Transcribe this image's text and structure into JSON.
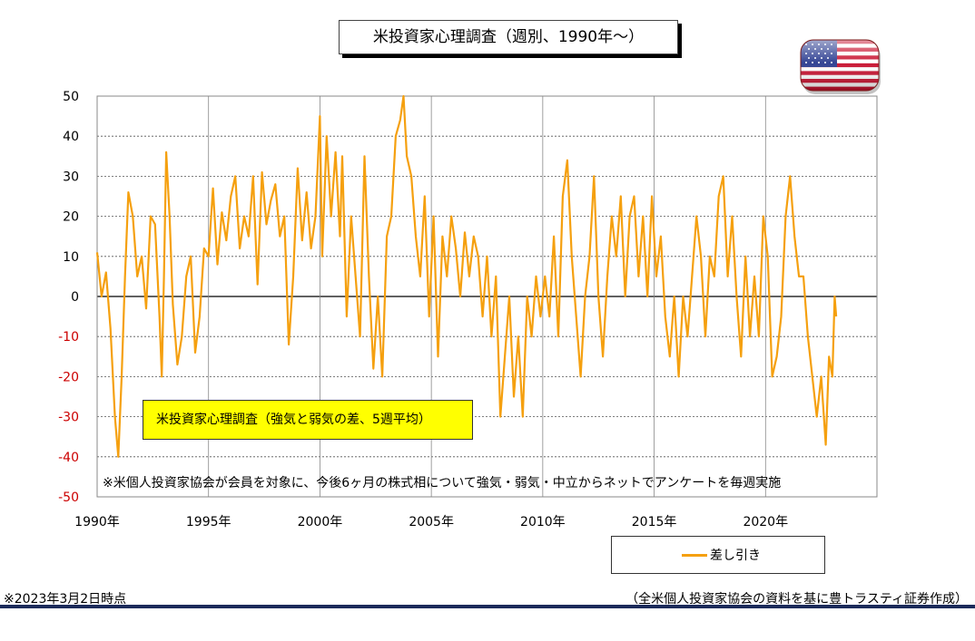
{
  "chart_data": {
    "type": "line",
    "title": "米投資家心理調査（週別、1990年～）",
    "ylim": [
      -50,
      50
    ],
    "yticks": [
      "50",
      "40",
      "30",
      "20",
      "10",
      "0",
      "-10",
      "-20",
      "-30",
      "-40",
      "-50"
    ],
    "xlim": [
      1990,
      2025
    ],
    "xticks": [
      {
        "label": "1990年",
        "value": 1990
      },
      {
        "label": "1995年",
        "value": 1995
      },
      {
        "label": "2000年",
        "value": 2000
      },
      {
        "label": "2005年",
        "value": 2005
      },
      {
        "label": "2010年",
        "value": 2010
      },
      {
        "label": "2015年",
        "value": 2015
      },
      {
        "label": "2020年",
        "value": 2020
      }
    ],
    "grid": true,
    "series": [
      {
        "name": "差し引き",
        "color": "#f5a00f",
        "points": [
          [
            1990.0,
            11
          ],
          [
            1990.2,
            0
          ],
          [
            1990.4,
            6
          ],
          [
            1990.6,
            -8
          ],
          [
            1990.8,
            -30
          ],
          [
            1990.95,
            -40
          ],
          [
            1991.1,
            -20
          ],
          [
            1991.25,
            5
          ],
          [
            1991.4,
            26
          ],
          [
            1991.6,
            20
          ],
          [
            1991.8,
            5
          ],
          [
            1992.0,
            10
          ],
          [
            1992.2,
            -3
          ],
          [
            1992.4,
            20
          ],
          [
            1992.6,
            18
          ],
          [
            1992.8,
            -5
          ],
          [
            1992.9,
            -20
          ],
          [
            1993.0,
            5
          ],
          [
            1993.1,
            36
          ],
          [
            1993.25,
            20
          ],
          [
            1993.4,
            -2
          ],
          [
            1993.6,
            -17
          ],
          [
            1993.8,
            -10
          ],
          [
            1994.0,
            5
          ],
          [
            1994.2,
            10
          ],
          [
            1994.4,
            -14
          ],
          [
            1994.6,
            -5
          ],
          [
            1994.8,
            12
          ],
          [
            1995.0,
            10
          ],
          [
            1995.2,
            27
          ],
          [
            1995.4,
            8
          ],
          [
            1995.6,
            21
          ],
          [
            1995.8,
            14
          ],
          [
            1996.0,
            25
          ],
          [
            1996.2,
            30
          ],
          [
            1996.4,
            12
          ],
          [
            1996.6,
            20
          ],
          [
            1996.8,
            15
          ],
          [
            1997.0,
            30
          ],
          [
            1997.2,
            3
          ],
          [
            1997.4,
            31
          ],
          [
            1997.6,
            18
          ],
          [
            1997.8,
            24
          ],
          [
            1998.0,
            28
          ],
          [
            1998.2,
            15
          ],
          [
            1998.4,
            20
          ],
          [
            1998.6,
            -12
          ],
          [
            1998.8,
            5
          ],
          [
            1999.0,
            32
          ],
          [
            1999.2,
            14
          ],
          [
            1999.4,
            26
          ],
          [
            1999.6,
            12
          ],
          [
            1999.8,
            20
          ],
          [
            2000.0,
            45
          ],
          [
            2000.1,
            10
          ],
          [
            2000.3,
            40
          ],
          [
            2000.5,
            20
          ],
          [
            2000.7,
            36
          ],
          [
            2000.9,
            15
          ],
          [
            2001.0,
            35
          ],
          [
            2001.2,
            -5
          ],
          [
            2001.4,
            20
          ],
          [
            2001.6,
            5
          ],
          [
            2001.8,
            -10
          ],
          [
            2002.0,
            35
          ],
          [
            2002.2,
            5
          ],
          [
            2002.4,
            -18
          ],
          [
            2002.6,
            0
          ],
          [
            2002.8,
            -20
          ],
          [
            2003.0,
            15
          ],
          [
            2003.2,
            20
          ],
          [
            2003.4,
            40
          ],
          [
            2003.6,
            44
          ],
          [
            2003.75,
            50
          ],
          [
            2003.9,
            35
          ],
          [
            2004.1,
            30
          ],
          [
            2004.3,
            15
          ],
          [
            2004.5,
            5
          ],
          [
            2004.7,
            25
          ],
          [
            2004.9,
            -5
          ],
          [
            2005.1,
            20
          ],
          [
            2005.3,
            -15
          ],
          [
            2005.5,
            15
          ],
          [
            2005.7,
            5
          ],
          [
            2005.9,
            20
          ],
          [
            2006.1,
            12
          ],
          [
            2006.3,
            0
          ],
          [
            2006.5,
            16
          ],
          [
            2006.7,
            5
          ],
          [
            2006.9,
            15
          ],
          [
            2007.1,
            10
          ],
          [
            2007.3,
            -5
          ],
          [
            2007.5,
            10
          ],
          [
            2007.7,
            -10
          ],
          [
            2007.9,
            5
          ],
          [
            2008.1,
            -30
          ],
          [
            2008.3,
            -15
          ],
          [
            2008.5,
            0
          ],
          [
            2008.7,
            -25
          ],
          [
            2008.9,
            -10
          ],
          [
            2009.1,
            -30
          ],
          [
            2009.3,
            0
          ],
          [
            2009.5,
            -10
          ],
          [
            2009.7,
            5
          ],
          [
            2009.9,
            -5
          ],
          [
            2010.1,
            5
          ],
          [
            2010.3,
            -5
          ],
          [
            2010.5,
            15
          ],
          [
            2010.7,
            -10
          ],
          [
            2010.9,
            25
          ],
          [
            2011.1,
            34
          ],
          [
            2011.3,
            10
          ],
          [
            2011.5,
            -5
          ],
          [
            2011.7,
            -20
          ],
          [
            2011.9,
            0
          ],
          [
            2012.1,
            10
          ],
          [
            2012.3,
            30
          ],
          [
            2012.5,
            0
          ],
          [
            2012.7,
            -15
          ],
          [
            2012.9,
            5
          ],
          [
            2013.1,
            20
          ],
          [
            2013.3,
            10
          ],
          [
            2013.5,
            25
          ],
          [
            2013.7,
            0
          ],
          [
            2013.9,
            20
          ],
          [
            2014.1,
            25
          ],
          [
            2014.3,
            5
          ],
          [
            2014.5,
            20
          ],
          [
            2014.7,
            0
          ],
          [
            2014.9,
            25
          ],
          [
            2015.1,
            5
          ],
          [
            2015.3,
            15
          ],
          [
            2015.5,
            -5
          ],
          [
            2015.7,
            -15
          ],
          [
            2015.9,
            0
          ],
          [
            2016.1,
            -20
          ],
          [
            2016.3,
            0
          ],
          [
            2016.5,
            -10
          ],
          [
            2016.7,
            5
          ],
          [
            2016.9,
            20
          ],
          [
            2017.1,
            10
          ],
          [
            2017.3,
            -10
          ],
          [
            2017.5,
            10
          ],
          [
            2017.7,
            5
          ],
          [
            2017.9,
            25
          ],
          [
            2018.1,
            30
          ],
          [
            2018.3,
            5
          ],
          [
            2018.5,
            20
          ],
          [
            2018.7,
            0
          ],
          [
            2018.9,
            -15
          ],
          [
            2019.1,
            10
          ],
          [
            2019.3,
            -10
          ],
          [
            2019.5,
            5
          ],
          [
            2019.7,
            -10
          ],
          [
            2019.9,
            20
          ],
          [
            2020.1,
            10
          ],
          [
            2020.3,
            -20
          ],
          [
            2020.5,
            -15
          ],
          [
            2020.7,
            -5
          ],
          [
            2020.9,
            20
          ],
          [
            2021.1,
            30
          ],
          [
            2021.3,
            15
          ],
          [
            2021.5,
            5
          ],
          [
            2021.7,
            5
          ],
          [
            2021.9,
            -10
          ],
          [
            2022.1,
            -20
          ],
          [
            2022.3,
            -30
          ],
          [
            2022.5,
            -20
          ],
          [
            2022.7,
            -37
          ],
          [
            2022.85,
            -15
          ],
          [
            2023.0,
            -20
          ],
          [
            2023.1,
            0
          ],
          [
            2023.17,
            -5
          ]
        ]
      }
    ],
    "legend_label": "差し引き",
    "annotation": "米投資家心理調査（強気と弱気の差、5週平均）",
    "note": "※米個人投資家協会が会員を対象に、今後6ヶ月の株式相について強気・弱気・中立からネットでアンケートを毎週実施"
  },
  "footer": {
    "left": "※2023年3月2日時点",
    "right": "（全米個人投資家協会の資料を基に豊トラスティ証券作成）"
  },
  "colors": {
    "line": "#f5a00f",
    "annotation_bg": "#ffff00",
    "footer_rule": "#1b2a5a",
    "negative_tick": "#cc0000"
  },
  "icons": {
    "flag": "us-flag-icon"
  }
}
